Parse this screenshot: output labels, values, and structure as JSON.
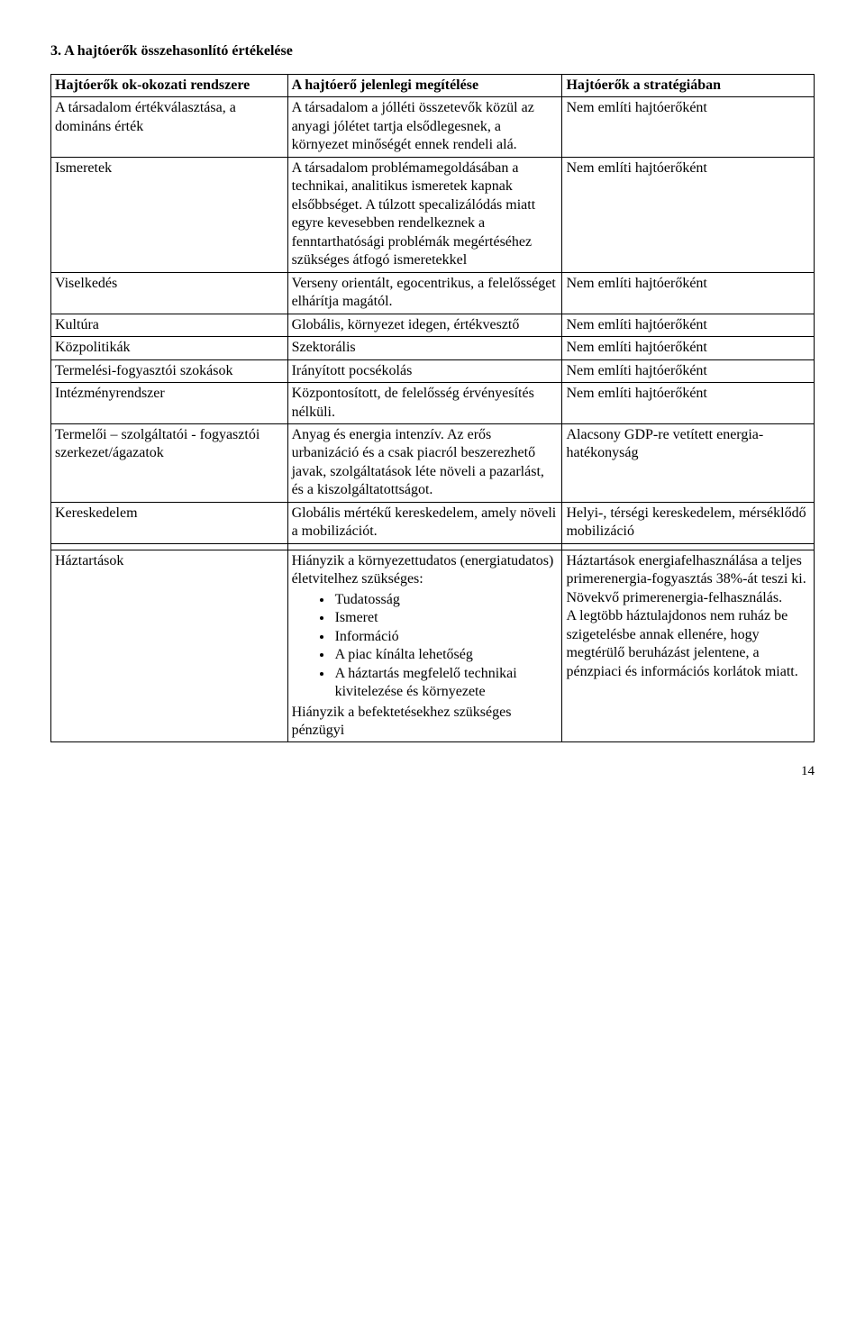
{
  "title": "3. A hajtóerők összehasonlító értékelése",
  "header": {
    "col1": "Hajtóerők ok-okozati rendszere",
    "col2": "A hajtóerő jelenlegi megítélése",
    "col3": "Hajtóerők a stratégiában"
  },
  "rows": [
    {
      "c1": "A társadalom értékválasztása, a domináns érték",
      "c2": "A társadalom a jólléti összetevők közül az anyagi jólétet tartja elsődlegesnek, a környezet minőségét ennek rendeli alá.",
      "c3": "Nem említi hajtóerőként"
    },
    {
      "c1": "Ismeretek",
      "c2": "A társadalom problémamegoldásában a technikai, analitikus ismeretek kapnak elsőbbséget. A túlzott specalizálódás miatt egyre kevesebben rendelkeznek a fenntarthatósági problémák megértéséhez szükséges átfogó ismeretekkel",
      "c3": "Nem említi hajtóerőként"
    },
    {
      "c1": "Viselkedés",
      "c2": "Verseny orientált, egocentrikus, a felelősséget elhárítja magától.",
      "c3": "Nem említi hajtóerőként"
    },
    {
      "c1": "Kultúra",
      "c2": "Globális, környezet idegen, értékvesztő",
      "c3": "Nem említi hajtóerőként"
    },
    {
      "c1": "Közpolitikák",
      "c2": "Szektorális",
      "c3": "Nem említi hajtóerőként"
    },
    {
      "c1": "Termelési-fogyasztói szokások",
      "c2": "Irányított pocsékolás",
      "c3": "Nem említi hajtóerőként"
    },
    {
      "c1": "Intézményrendszer",
      "c2": "Központosított, de felelősség érvényesítés nélküli.",
      "c3": "Nem említi hajtóerőként"
    },
    {
      "c1": "Termelői – szolgáltatói - fogyasztói szerkezet/ágazatok",
      "c2": "Anyag és energia intenzív. Az erős urbanizáció és a csak piacról beszerezhető javak, szolgáltatások léte növeli a pazarlást, és a kiszolgáltatottságot.",
      "c3": "Alacsony GDP-re vetített energia-hatékonyság"
    },
    {
      "c1": "Kereskedelem",
      "c2": "Globális mértékű kereskedelem, amely növeli a mobilizációt.",
      "c3": "Helyi-, térségi kereskedelem, mérséklődő mobilizáció"
    }
  ],
  "haz": {
    "c1": "Háztartások",
    "c2_before": "Hiányzik a környezettudatos (energiatudatos) életvitelhez szükséges:",
    "bullets": [
      "Tudatosság",
      "Ismeret",
      "Információ",
      "A piac kínálta lehetőség",
      "A háztartás megfelelő technikai kivitelezése és környezete"
    ],
    "c2_after": "Hiányzik a befektetésekhez szükséges pénzügyi",
    "c3": "Háztartások energiafelhasználása a teljes primerenergia-fogyasztás 38%-át teszi ki.\nNövekvő primerenergia-felhasználás.\nA legtöbb háztulajdonos nem ruház be szigetelésbe annak ellenére, hogy megtérülő beruházást jelentene, a pénzpiaci és információs korlátok miatt."
  },
  "page_number": "14"
}
